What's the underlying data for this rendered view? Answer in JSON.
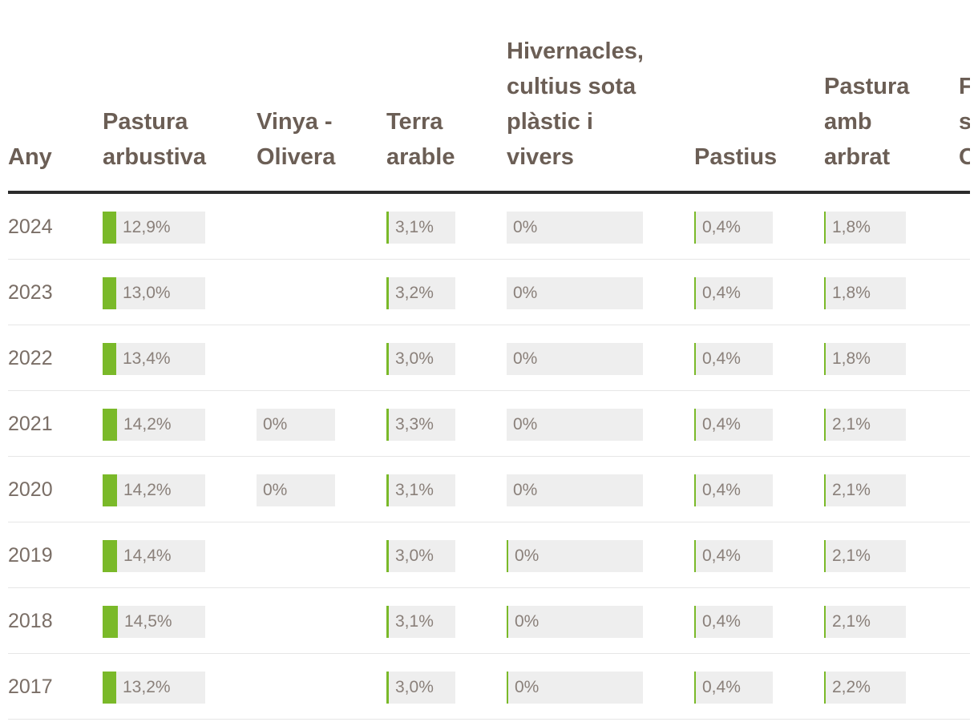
{
  "chart_data": {
    "type": "table",
    "year_header": "Any",
    "columns": [
      {
        "label": "Pastura\narbustiva",
        "scale_max": 100
      },
      {
        "label": "Vinya -\nOlivera",
        "scale_max": 100
      },
      {
        "label": "Terra\narable",
        "scale_max": 100
      },
      {
        "label": "Hivernacles,\ncultius sota\nplàstic i\nvivers",
        "scale_max": 100
      },
      {
        "label": "Pastius",
        "scale_max": 100
      },
      {
        "label": "Pastura\namb\narbrat",
        "scale_max": 100
      },
      {
        "label": "F\nse\nO",
        "scale_max": 100
      }
    ],
    "rows": [
      {
        "year": "2024",
        "values": [
          12.9,
          null,
          3.1,
          0,
          0.4,
          1.8,
          null
        ],
        "labels": [
          "12,9%",
          "",
          "3,1%",
          "0%",
          "0,4%",
          "1,8%",
          ""
        ]
      },
      {
        "year": "2023",
        "values": [
          13.0,
          null,
          3.2,
          0,
          0.4,
          1.8,
          null
        ],
        "labels": [
          "13,0%",
          "",
          "3,2%",
          "0%",
          "0,4%",
          "1,8%",
          ""
        ]
      },
      {
        "year": "2022",
        "values": [
          13.4,
          null,
          3.0,
          0,
          0.4,
          1.8,
          null
        ],
        "labels": [
          "13,4%",
          "",
          "3,0%",
          "0%",
          "0,4%",
          "1,8%",
          ""
        ]
      },
      {
        "year": "2021",
        "values": [
          14.2,
          0,
          3.3,
          0,
          0.4,
          2.1,
          null
        ],
        "labels": [
          "14,2%",
          "0%",
          "3,3%",
          "0%",
          "0,4%",
          "2,1%",
          ""
        ]
      },
      {
        "year": "2020",
        "values": [
          14.2,
          0,
          3.1,
          0,
          0.4,
          2.1,
          null
        ],
        "labels": [
          "14,2%",
          "0%",
          "3,1%",
          "0%",
          "0,4%",
          "2,1%",
          ""
        ]
      },
      {
        "year": "2019",
        "values": [
          14.4,
          null,
          3.0,
          0.01,
          0.4,
          2.1,
          null
        ],
        "labels": [
          "14,4%",
          "",
          "3,0%",
          "0%",
          "0,4%",
          "2,1%",
          ""
        ]
      },
      {
        "year": "2018",
        "values": [
          14.5,
          null,
          3.1,
          0.01,
          0.4,
          2.1,
          null
        ],
        "labels": [
          "14,5%",
          "",
          "3,1%",
          "0%",
          "0,4%",
          "2,1%",
          ""
        ]
      },
      {
        "year": "2017",
        "values": [
          13.2,
          null,
          3.0,
          0.01,
          0.4,
          2.2,
          null
        ],
        "labels": [
          "13,2%",
          "",
          "3,0%",
          "0%",
          "0,4%",
          "2,2%",
          ""
        ]
      }
    ],
    "colors": {
      "bar": "#7ab929",
      "cell_bg": "#eeeeee",
      "header_text": "#6b5e55",
      "header_rule": "#2b2b2b"
    }
  }
}
